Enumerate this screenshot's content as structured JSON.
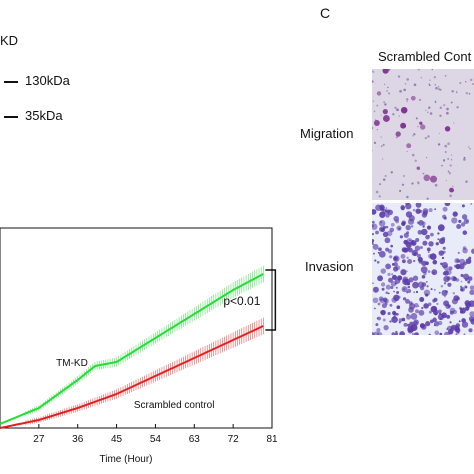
{
  "blot": {
    "lane_label": "KD",
    "bands": [
      "130kDa",
      "35kDa"
    ]
  },
  "panel_c": {
    "letter": "C",
    "column_title": "Scrambled Cont",
    "rows": [
      {
        "label": "Migration"
      },
      {
        "label": "Invasion"
      }
    ]
  },
  "colors": {
    "tm_kd": "#22dd33",
    "scrambled": "#e02020",
    "migration_bg": "#ddd6e4",
    "invasion_bg": "#e8ecf8",
    "stain": "#5a3aa8"
  },
  "chart_data": {
    "type": "line",
    "title": "",
    "xlabel": "Time (Hour)",
    "ylabel": "",
    "x_ticks": [
      27,
      36,
      45,
      54,
      63,
      72,
      81
    ],
    "xlim": [
      18,
      81
    ],
    "ylim": [
      0,
      1.0
    ],
    "series": [
      {
        "name": "TM-KD",
        "color": "#22dd33",
        "x": [
          18,
          27,
          36,
          40,
          45,
          54,
          63,
          72,
          79
        ],
        "y": [
          0.02,
          0.1,
          0.24,
          0.31,
          0.33,
          0.45,
          0.57,
          0.69,
          0.77
        ]
      },
      {
        "name": "Scrambled control",
        "color": "#e02020",
        "x": [
          18,
          27,
          36,
          45,
          54,
          63,
          72,
          79
        ],
        "y": [
          0.0,
          0.04,
          0.1,
          0.17,
          0.26,
          0.35,
          0.44,
          0.51
        ]
      }
    ],
    "annotations": [
      "TM-KD",
      "Scrambled control",
      "p<0.01"
    ]
  }
}
